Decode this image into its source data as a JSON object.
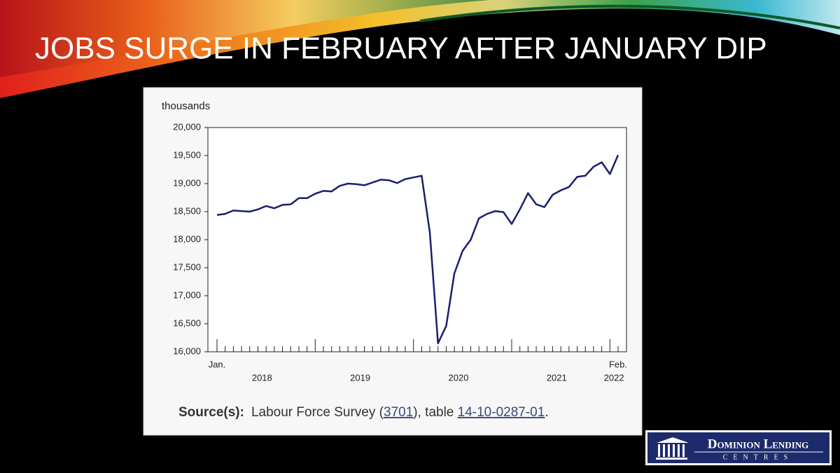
{
  "slide_title": "JOBS SURGE IN FEBRUARY AFTER JANUARY DIP",
  "chart_data": {
    "type": "line",
    "y_label": "thousands",
    "categories": [
      "Jan.",
      null,
      null,
      null,
      null,
      null,
      null,
      null,
      null,
      null,
      null,
      null,
      null,
      null,
      null,
      null,
      null,
      null,
      null,
      null,
      null,
      null,
      null,
      null,
      null,
      null,
      null,
      null,
      null,
      null,
      null,
      null,
      null,
      null,
      null,
      null,
      null,
      null,
      null,
      null,
      null,
      null,
      null,
      null,
      null,
      null,
      null,
      null,
      null,
      "Feb."
    ],
    "years": [
      "2018",
      "2019",
      "2020",
      "2021",
      "2022"
    ],
    "series": [
      {
        "color": "#1a1f6e",
        "values": [
          18440,
          18460,
          18520,
          18510,
          18500,
          18540,
          18600,
          18560,
          18620,
          18630,
          18740,
          18740,
          18820,
          18870,
          18860,
          18960,
          19000,
          18990,
          18970,
          19020,
          19070,
          19060,
          19010,
          19080,
          19110,
          19140,
          18130,
          16150,
          16460,
          17400,
          17800,
          18000,
          18380,
          18460,
          18510,
          18490,
          18280,
          18540,
          18830,
          18630,
          18580,
          18800,
          18880,
          18940,
          19120,
          19140,
          19300,
          19380,
          19170,
          19510
        ]
      }
    ],
    "ylim": [
      16000,
      20000
    ],
    "yticks": [
      {
        "value": 16000,
        "label": "16,000"
      },
      {
        "value": 16500,
        "label": "16,500"
      },
      {
        "value": 17000,
        "label": "17,000"
      },
      {
        "value": 17500,
        "label": "17,500"
      },
      {
        "value": 18000,
        "label": "18,000"
      },
      {
        "value": 18500,
        "label": "18,500"
      },
      {
        "value": 19000,
        "label": "19,000"
      },
      {
        "value": 19500,
        "label": "19,500"
      },
      {
        "value": 20000,
        "label": "20,000"
      }
    ],
    "grid": false
  },
  "source": {
    "label": "Source(s):",
    "text1": "Labour Force Survey (",
    "link1": "3701",
    "text2": "), table ",
    "link2": "14-10-0287-01",
    "text3": "."
  },
  "logo": {
    "name": "Dominion Lending",
    "sub": "CENTRES"
  }
}
